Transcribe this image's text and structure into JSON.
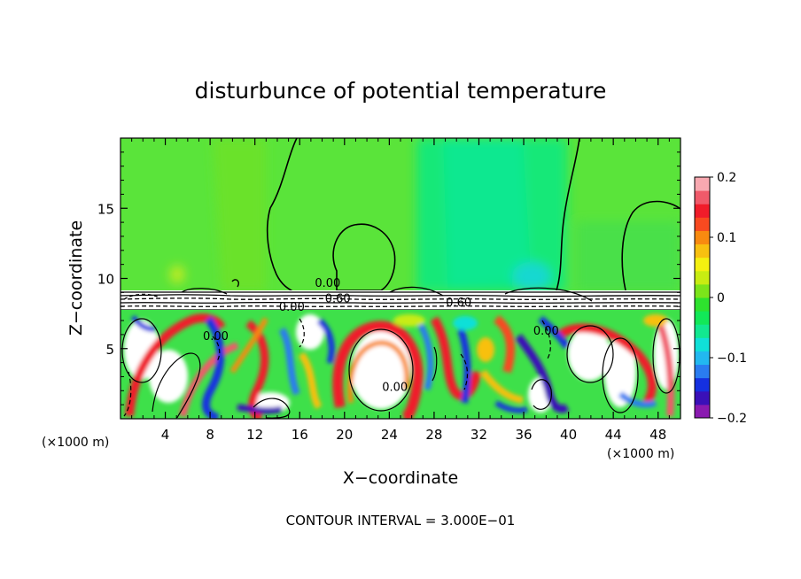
{
  "chart_data": {
    "type": "heatmap",
    "title": "disturbunce of potential temperature",
    "xlabel": "X−coordinate",
    "ylabel": "Z−coordinate",
    "x_unit_left": "(×1000 m)",
    "x_unit_right": "(×1000 m)",
    "xlim": [
      0,
      50
    ],
    "ylim": [
      0,
      20
    ],
    "x_ticks": [
      "4",
      "8",
      "12",
      "16",
      "20",
      "24",
      "28",
      "32",
      "36",
      "40",
      "44",
      "48"
    ],
    "x_tick_values": [
      4,
      8,
      12,
      16,
      20,
      24,
      28,
      32,
      36,
      40,
      44,
      48
    ],
    "y_ticks": [
      "5",
      "10",
      "15"
    ],
    "y_tick_values": [
      5,
      10,
      15
    ],
    "colorbar": {
      "ticks": [
        "0.2",
        "0.1",
        "0",
        "−0.1",
        "−0.2"
      ],
      "tick_values": [
        0.2,
        0.1,
        0,
        -0.1,
        -0.2
      ],
      "range": [
        -0.2,
        0.2
      ],
      "colors": [
        "#8a1ab0",
        "#3a10b8",
        "#1530e0",
        "#2a7cf0",
        "#22b8f0",
        "#10e0d8",
        "#12e890",
        "#12e858",
        "#2ee22e",
        "#7ce41a",
        "#c8ec12",
        "#f4f010",
        "#f8c010",
        "#f88a10",
        "#f84a20",
        "#f01c2a",
        "#f05a6a",
        "#f8a8b0"
      ]
    },
    "contour_labels": [
      "0.00",
      "0.60",
      "0.00",
      "0.60",
      "0.00",
      "0.00",
      "0.00"
    ],
    "contour_label_positions": [
      {
        "x": 18.5,
        "z": 9.4
      },
      {
        "x": 19.4,
        "z": 8.3
      },
      {
        "x": 15.3,
        "z": 7.7
      },
      {
        "x": 30.2,
        "z": 8.0
      },
      {
        "x": 8.5,
        "z": 5.6
      },
      {
        "x": 24.5,
        "z": 2.0
      },
      {
        "x": 38.0,
        "z": 6.0
      }
    ],
    "stable_layer_z": [
      8.0,
      9.0
    ],
    "footnote": "CONTOUR INTERVAL = 3.000E−01"
  }
}
